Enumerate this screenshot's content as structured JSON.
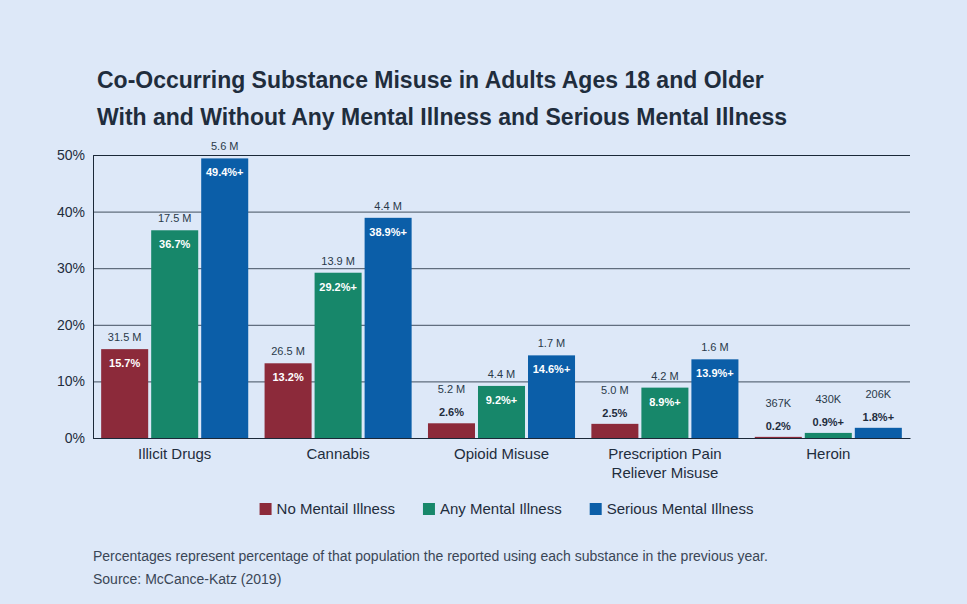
{
  "chart_data": {
    "type": "bar",
    "title": [
      "Co-Occurring Substance Misuse in Adults Ages 18 and Older",
      "With and Without Any Mental Illness and Serious Mental Illness"
    ],
    "note": "Percentages represent percentage of that population the reported using each substance in the previous year.",
    "source": "Source: McCance-Katz (2019)",
    "categories": [
      "Illicit Drugs",
      "Cannabis",
      "Opioid Misuse",
      "Prescription Pain Reliever Misuse",
      "Heroin"
    ],
    "series": [
      {
        "name": "No Mentail Illness",
        "color": "#8c2a3a",
        "values": [
          15.7,
          13.2,
          2.6,
          2.5,
          0.2
        ],
        "value_labels": [
          "15.7%",
          "13.2%",
          "2.6%",
          "2.5%",
          "0.2%"
        ],
        "counts": [
          31500000,
          26500000,
          5200000,
          5000000,
          367000
        ],
        "count_labels": [
          "31.5 M",
          "26.5 M",
          "5.2 M",
          "5.0 M",
          "367K"
        ]
      },
      {
        "name": "Any Mental Illness",
        "color": "#17876a",
        "values": [
          36.7,
          29.2,
          9.2,
          8.9,
          0.9
        ],
        "value_labels": [
          "36.7%",
          "29.2%+",
          "9.2%+",
          "8.9%+",
          "0.9%+"
        ],
        "counts": [
          17500000,
          13900000,
          4400000,
          4200000,
          430000
        ],
        "count_labels": [
          "17.5 M",
          "13.9 M",
          "4.4 M",
          "4.2 M",
          "430K"
        ]
      },
      {
        "name": "Serious Mental Illness",
        "color": "#0b5ea8",
        "values": [
          49.4,
          38.9,
          14.6,
          13.9,
          1.8
        ],
        "value_labels": [
          "49.4%+",
          "38.9%+",
          "14.6%+",
          "13.9%+",
          "1.8%+"
        ],
        "counts": [
          5600000,
          4400000,
          1700000,
          1600000,
          206000
        ],
        "count_labels": [
          "5.6 M",
          "4.4 M",
          "1.7 M",
          "1.6 M",
          "206K"
        ]
      }
    ],
    "ylim": [
      0,
      50
    ],
    "yticks": [
      {
        "value": 0,
        "label": "0%"
      },
      {
        "value": 10,
        "label": "10%"
      },
      {
        "value": 20,
        "label": "20%"
      },
      {
        "value": 30,
        "label": "30%"
      },
      {
        "value": 40,
        "label": "40%"
      },
      {
        "value": 50,
        "label": "50%"
      }
    ],
    "grid": true,
    "legend": "bottom",
    "data_labels": true
  }
}
